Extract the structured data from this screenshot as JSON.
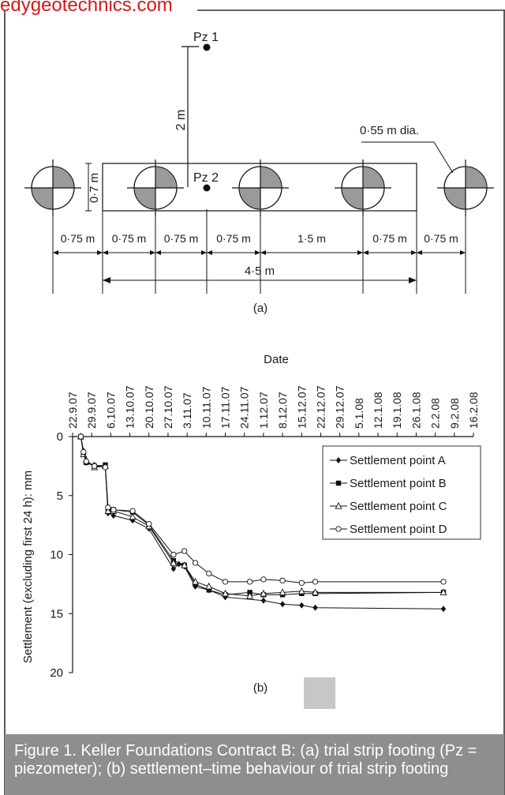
{
  "watermark": "edygeotechnics.com",
  "diagram": {
    "pz1_label": "Pz 1",
    "pz2_label": "Pz 2",
    "distance_label": "2 m",
    "width_label": "0·7 m",
    "diameter_label": "0·55 m dia.",
    "spacing_labels": [
      "0·75 m",
      "0·75 m",
      "0·75 m",
      "0·75 m",
      "1·5 m",
      "0·75 m",
      "0·75 m"
    ],
    "total_label": "4·5 m",
    "panel_label": "(a)"
  },
  "chart_data": {
    "type": "line",
    "xlabel": "Date",
    "ylabel": "Settlement (excluding first 24 h): mm",
    "x_tick_labels": [
      "22.9.07",
      "29.9.07",
      "6.10.07",
      "13.10.07",
      "20.10.07",
      "27.10.07",
      "3.11.07",
      "10.11.07",
      "17.11.07",
      "24.11.07",
      "1.12.07",
      "8.12.07",
      "15.12.07",
      "22.12.07",
      "29.12.07",
      "5.1.08",
      "12.1.08",
      "19.1.08",
      "26.1.08",
      "2.2.08",
      "9.2.08",
      "16.2.08"
    ],
    "y_ticks": [
      0,
      5,
      10,
      15,
      20
    ],
    "ylim": [
      0,
      20
    ],
    "y_inverted": true,
    "grid": false,
    "legend_position": "right",
    "panel_label": "(b)",
    "series": [
      {
        "name": "Settlement point A",
        "marker": "diamond-filled",
        "x": [
          "2007-09-25",
          "2007-09-26",
          "2007-09-27",
          "2007-09-30",
          "2007-10-04",
          "2007-10-05",
          "2007-10-07",
          "2007-10-14",
          "2007-10-20",
          "2007-10-29",
          "2007-10-31",
          "2007-11-02",
          "2007-11-06",
          "2007-11-11",
          "2007-11-17",
          "2007-12-01",
          "2007-12-08",
          "2007-12-15",
          "2007-12-20",
          "2008-02-05"
        ],
        "y": [
          0,
          1.2,
          2.2,
          2.4,
          2.6,
          6.5,
          6.7,
          7.1,
          7.8,
          11.2,
          10.8,
          11.0,
          12.7,
          13.0,
          13.6,
          13.9,
          14.2,
          14.3,
          14.5,
          14.6
        ]
      },
      {
        "name": "Settlement point B",
        "marker": "square-filled",
        "x": [
          "2007-09-25",
          "2007-09-26",
          "2007-09-27",
          "2007-09-30",
          "2007-10-04",
          "2007-10-05",
          "2007-10-07",
          "2007-10-14",
          "2007-10-20",
          "2007-10-29",
          "2007-11-02",
          "2007-11-06",
          "2007-11-11",
          "2007-11-17",
          "2007-11-26",
          "2007-12-01",
          "2007-12-08",
          "2007-12-15",
          "2007-12-20",
          "2008-02-05"
        ],
        "y": [
          0,
          1.4,
          2.2,
          2.5,
          2.4,
          6.2,
          6.2,
          6.4,
          7.5,
          10.5,
          10.9,
          12.5,
          13.0,
          13.4,
          13.2,
          13.4,
          13.4,
          13.3,
          13.3,
          13.2
        ]
      },
      {
        "name": "Settlement point C",
        "marker": "triangle-open",
        "x": [
          "2007-09-25",
          "2007-09-26",
          "2007-09-27",
          "2007-09-30",
          "2007-10-04",
          "2007-10-05",
          "2007-10-07",
          "2007-10-14",
          "2007-10-20",
          "2007-10-29",
          "2007-11-02",
          "2007-11-06",
          "2007-11-11",
          "2007-11-17",
          "2007-11-26",
          "2007-12-01",
          "2007-12-08",
          "2007-12-15",
          "2007-12-20",
          "2008-02-05"
        ],
        "y": [
          0,
          1.5,
          2.0,
          2.6,
          2.5,
          6.3,
          6.3,
          6.8,
          7.6,
          10.7,
          10.9,
          12.3,
          12.7,
          13.3,
          13.5,
          13.3,
          13.2,
          13.1,
          13.2,
          13.2
        ]
      },
      {
        "name": "Settlement point D",
        "marker": "circle-open",
        "x": [
          "2007-09-25",
          "2007-09-26",
          "2007-09-27",
          "2007-09-30",
          "2007-10-04",
          "2007-10-05",
          "2007-10-07",
          "2007-10-14",
          "2007-10-20",
          "2007-10-29",
          "2007-11-02",
          "2007-11-06",
          "2007-11-11",
          "2007-11-17",
          "2007-11-26",
          "2007-12-01",
          "2007-12-08",
          "2007-12-15",
          "2007-12-20",
          "2008-02-05"
        ],
        "y": [
          0,
          1.3,
          2.1,
          2.5,
          2.6,
          6.0,
          6.2,
          6.3,
          7.4,
          10.0,
          9.7,
          10.7,
          11.6,
          12.3,
          12.3,
          12.1,
          12.2,
          12.4,
          12.3,
          12.3
        ]
      }
    ]
  },
  "caption": {
    "text": "Figure 1. Keller Foundations Contract B: (a) trial strip footing (Pz = piezometer); (b) settlement–time behaviour of trial strip footing"
  }
}
